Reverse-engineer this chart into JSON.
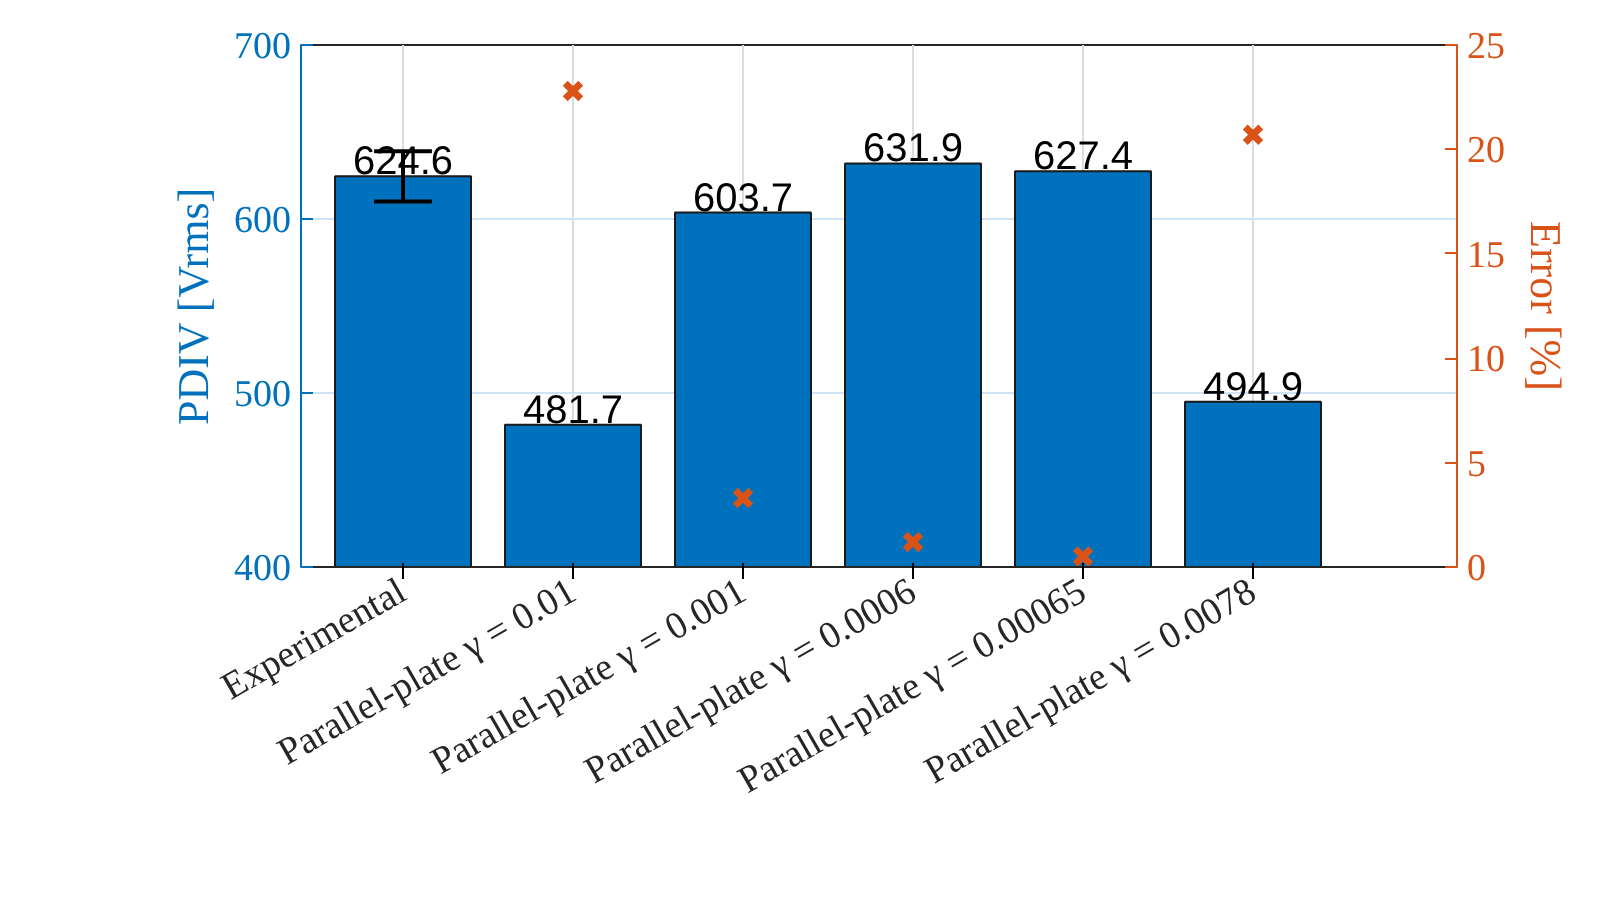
{
  "chart_data": {
    "type": "bar",
    "categories": [
      "Experimental",
      "Parallel-plate γ = 0.01",
      "Parallel-plate γ = 0.001",
      "Parallel-plate γ = 0.0006",
      "Parallel-plate γ = 0.00065",
      "Parallel-plate γ = 0.0078"
    ],
    "ylabel": "PDIV [Vrms]",
    "y2label": "Error [%]",
    "ylim": [
      400,
      700
    ],
    "yticks": [
      400,
      500,
      600,
      700
    ],
    "y2lim": [
      0,
      25
    ],
    "y2ticks": [
      0,
      5,
      10,
      15,
      20,
      25
    ],
    "grid": true,
    "series": [
      {
        "color": "#0072bd",
        "values": [
          624.6,
          481.7,
          603.7,
          631.9,
          627.4,
          494.9
        ],
        "value_labels": [
          "624.6",
          "481.7",
          "603.7",
          "631.9",
          "627.4",
          "494.9"
        ],
        "errors": [
          [
            610,
            639
          ],
          null,
          null,
          null,
          null,
          null
        ]
      },
      {
        "type": "scatter",
        "axis": "y2",
        "color": "#d95319",
        "marker": "cross",
        "values": [
          null,
          22.8,
          3.3,
          1.2,
          0.5,
          20.7
        ]
      }
    ]
  }
}
